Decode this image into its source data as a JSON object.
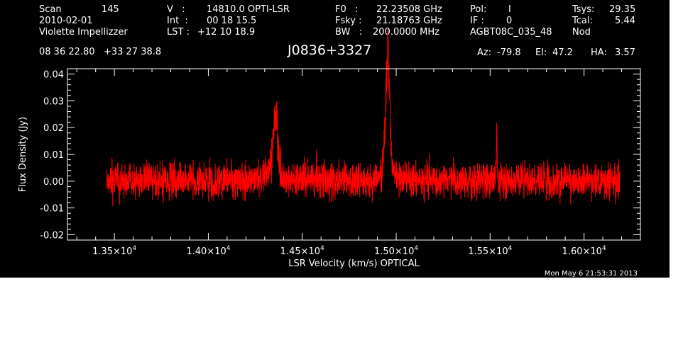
{
  "header": {
    "scan_label": "Scan",
    "scan_value": "145",
    "date": "2010-02-01",
    "observer": "Violette Impellizzer",
    "v_label": "V   :",
    "v_value": "14810.0 OPTI-LSR",
    "int_label": "Int  :",
    "int_value": "00 18 15.5",
    "lst_label": "LST :",
    "lst_value": "+12 10 18.9",
    "f0_label": "F0   :",
    "f0_value": "22.23508 GHz",
    "fsky_label": "Fsky :",
    "fsky_value": "21.18763 GHz",
    "bw_label": "BW   :",
    "bw_value": "200.0000 MHz",
    "pol_label": "Pol:",
    "pol_value": "I",
    "if_label": "IF :",
    "if_value": "0",
    "project": "AGBT08C_035_48",
    "tsys_label": "Tsys:",
    "tsys_value": "29.35",
    "tcal_label": "Tcal:",
    "tcal_value": "5.44",
    "procedure": "Nod",
    "coords": "08 36 22.80   +33 27 38.8",
    "source": "J0836+3327",
    "az_label": "Az:",
    "az_value": "-79.8",
    "el_label": "El:",
    "el_value": "47.2",
    "ha_label": "HA:",
    "ha_value": "3.57"
  },
  "footer": {
    "timestamp": "Mon May  6 21:53:31 2013"
  },
  "colors": {
    "background": "#000000",
    "foreground": "#ffffff",
    "trace": "#ff0000",
    "page": "#ffffff"
  },
  "chart_data": {
    "type": "line",
    "xlabel": "LSR Velocity (km/s) OPTICAL",
    "ylabel": "Flux Density (Jy)",
    "xlim": [
      13250,
      16300
    ],
    "ylim": [
      -0.022,
      0.042
    ],
    "x_ticks": [
      {
        "value": 13500,
        "mantissa": "1.35",
        "exponent": "4"
      },
      {
        "value": 14000,
        "mantissa": "1.40",
        "exponent": "4"
      },
      {
        "value": 14500,
        "mantissa": "1.45",
        "exponent": "4"
      },
      {
        "value": 15000,
        "mantissa": "1.50",
        "exponent": "4"
      },
      {
        "value": 15500,
        "mantissa": "1.55",
        "exponent": "4"
      },
      {
        "value": 16000,
        "mantissa": "1.60",
        "exponent": "4"
      }
    ],
    "x_tick_times": "×10",
    "y_ticks": [
      {
        "value": 0.04,
        "label": "0.04"
      },
      {
        "value": 0.03,
        "label": "0.03"
      },
      {
        "value": 0.02,
        "label": "0.02"
      },
      {
        "value": 0.01,
        "label": "0.01"
      },
      {
        "value": 0.0,
        "label": "0.00"
      },
      {
        "value": -0.01,
        "label": "-0.01"
      },
      {
        "value": -0.02,
        "label": "-0.02"
      }
    ],
    "series": [
      {
        "color": "#ff0000",
        "x_range": [
          13460,
          16190
        ],
        "noise_rms": 0.0033,
        "baseline": [
          [
            13460,
            0.0
          ],
          [
            14400,
            0.0005
          ],
          [
            14800,
            0.0007
          ],
          [
            15400,
            0.0005
          ],
          [
            16190,
            0.0
          ]
        ],
        "features": [
          {
            "center": 14360,
            "peak": 0.021,
            "width": 12
          },
          {
            "center": 14335,
            "peak": 0.006,
            "width": 20
          },
          {
            "center": 14955,
            "peak": 0.039,
            "width": 10
          },
          {
            "center": 14950,
            "peak": 0.008,
            "width": 22
          },
          {
            "center": 15535,
            "peak": 0.016,
            "width": 3
          }
        ]
      }
    ],
    "grid": false,
    "legend": "none"
  }
}
